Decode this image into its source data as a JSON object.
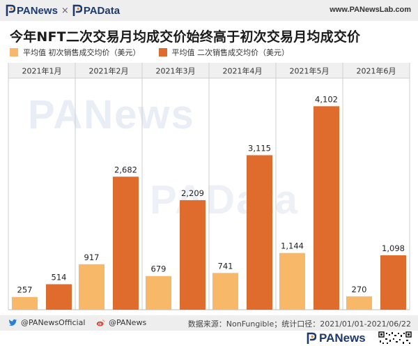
{
  "header": {
    "brand_left": "PANews",
    "brand_sep": "×",
    "brand_right": "PAData",
    "site": "www.PANewsLab.com"
  },
  "colors": {
    "initial": "#F8B86A",
    "secondary": "#DF6B2C",
    "grid": "#cfcfcf",
    "header_band": "#eeeeee",
    "brand": "#1d3a6e"
  },
  "chart_data": {
    "type": "bar",
    "title": "今年NFT二次交易月均成交价始终高于初次交易月均成交价",
    "categories": [
      "2021年1月",
      "2021年2月",
      "2021年3月",
      "2021年4月",
      "2021年5月",
      "2021年6月"
    ],
    "series": [
      {
        "name": "平均值 初次销售成交均价（美元）",
        "values": [
          257,
          917,
          679,
          741,
          1144,
          270
        ],
        "labels": [
          "257",
          "917",
          "679",
          "741",
          "1,144",
          "270"
        ]
      },
      {
        "name": "平均值 二次销售成交均价（美元）",
        "values": [
          514,
          2682,
          2209,
          3115,
          4102,
          1098
        ],
        "labels": [
          "514",
          "2,682",
          "2,209",
          "3,115",
          "4,102",
          "1,098"
        ]
      }
    ],
    "ylim": [
      0,
      4500
    ],
    "grid": "vertical separators between months",
    "legend": "top-left",
    "watermarks": [
      "PANews",
      "PAData"
    ]
  },
  "footer": {
    "twitter": "@PANewsOfficial",
    "weibo": "@PANews",
    "source": "数据来源：NonFungible；统计口径：2021/01/01-2021/06/22",
    "logo": "PANews"
  }
}
